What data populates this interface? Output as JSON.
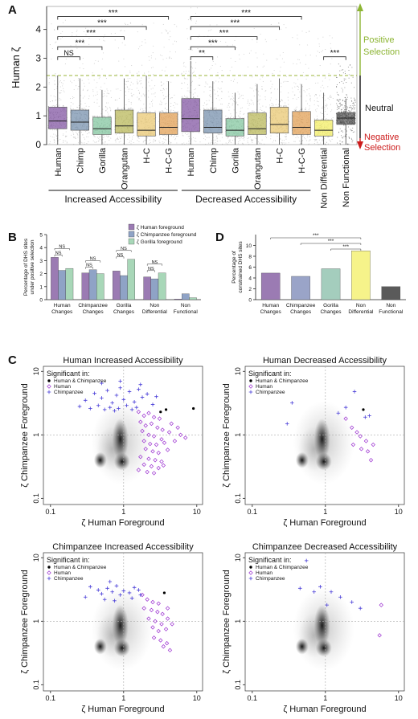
{
  "chart_data": [
    {
      "panel": "A",
      "type": "box",
      "ylabel": "Human ζ",
      "ylim": [
        0,
        4.8
      ],
      "yticks": [
        0,
        1,
        2,
        3,
        4
      ],
      "threshold_y": 2.4,
      "categories": [
        "Human",
        "Chimp",
        "Gorilla",
        "Orangutan",
        "H-C",
        "H-C-G",
        "Human",
        "Chimp",
        "Gorilla",
        "Orangutan",
        "H-C",
        "H-C-G",
        "Non Differential",
        "Non Functional"
      ],
      "colors": [
        "#7b4c9c",
        "#6f8aa8",
        "#7cc39a",
        "#b5b350",
        "#e8c56a",
        "#e09a4a",
        "#7b4c9c",
        "#6f8aa8",
        "#7cc39a",
        "#b5b350",
        "#e8c56a",
        "#e09a4a",
        "#f2ec5a",
        "#555555"
      ],
      "boxes": [
        {
          "q1": 0.55,
          "median": 0.82,
          "q3": 1.3,
          "whisker_hi": 2.4
        },
        {
          "q1": 0.5,
          "median": 0.78,
          "q3": 1.2,
          "whisker_hi": 2.3
        },
        {
          "q1": 0.35,
          "median": 0.55,
          "q3": 0.95,
          "whisker_hi": 1.9
        },
        {
          "q1": 0.4,
          "median": 0.65,
          "q3": 1.2,
          "whisker_hi": 2.3
        },
        {
          "q1": 0.3,
          "median": 0.5,
          "q3": 1.1,
          "whisker_hi": 2.4
        },
        {
          "q1": 0.35,
          "median": 0.6,
          "q3": 1.1,
          "whisker_hi": 2.2
        },
        {
          "q1": 0.45,
          "median": 0.9,
          "q3": 1.6,
          "whisker_hi": 2.9
        },
        {
          "q1": 0.4,
          "median": 0.6,
          "q3": 1.2,
          "whisker_hi": 2.2
        },
        {
          "q1": 0.3,
          "median": 0.5,
          "q3": 0.9,
          "whisker_hi": 1.8
        },
        {
          "q1": 0.35,
          "median": 0.55,
          "q3": 1.1,
          "whisker_hi": 2.1
        },
        {
          "q1": 0.4,
          "median": 0.7,
          "q3": 1.3,
          "whisker_hi": 2.3
        },
        {
          "q1": 0.35,
          "median": 0.6,
          "q3": 1.15,
          "whisker_hi": 2.1
        },
        {
          "q1": 0.3,
          "median": 0.5,
          "q3": 0.85,
          "whisker_hi": 1.8
        },
        {
          "q1": 0.7,
          "median": 0.92,
          "q3": 1.1,
          "whisker_hi": 1.6
        }
      ],
      "brackets": [
        {
          "from": 0,
          "to": 5,
          "y": 4.45,
          "label": "***"
        },
        {
          "from": 0,
          "to": 4,
          "y": 4.1,
          "label": "***"
        },
        {
          "from": 0,
          "to": 3,
          "y": 3.75,
          "label": "***"
        },
        {
          "from": 0,
          "to": 2,
          "y": 3.4,
          "label": "***"
        },
        {
          "from": 0,
          "to": 1,
          "y": 3.05,
          "label": "NS"
        },
        {
          "from": 6,
          "to": 11,
          "y": 4.45,
          "label": "***"
        },
        {
          "from": 6,
          "to": 10,
          "y": 4.1,
          "label": "***"
        },
        {
          "from": 6,
          "to": 9,
          "y": 3.75,
          "label": "***"
        },
        {
          "from": 6,
          "to": 8,
          "y": 3.4,
          "label": "***"
        },
        {
          "from": 6,
          "to": 7,
          "y": 3.05,
          "label": "**"
        },
        {
          "from": 12,
          "to": 13,
          "y": 3.05,
          "label": "***"
        }
      ],
      "side_labels": {
        "positive": [
          "Positive",
          "Selection"
        ],
        "neutral": "Neutral",
        "negative": [
          "Negative",
          "Selection"
        ]
      },
      "group_labels": [
        "Increased Accessibility",
        "Decreased Accessibility"
      ]
    },
    {
      "panel": "B",
      "type": "bar",
      "ylabel": [
        "Percentage of DHS sites",
        "under positive selection"
      ],
      "ylim": [
        0,
        5
      ],
      "yticks": [
        0,
        1,
        2,
        3,
        4,
        5
      ],
      "categories": [
        [
          "Human",
          "Changes"
        ],
        [
          "Chimpanzee",
          "Changes"
        ],
        [
          "Gorilla",
          "Changes"
        ],
        [
          "Non",
          "Differential"
        ],
        [
          "Non",
          "Functional"
        ]
      ],
      "series": [
        {
          "name": "ζ Human foreground",
          "color": "#9b7bb3",
          "values": [
            3.25,
            2.05,
            2.2,
            1.75,
            0.05
          ]
        },
        {
          "name": "ζ Chimpanzee foreground",
          "color": "#8fa3c6",
          "values": [
            2.25,
            2.3,
            1.85,
            1.6,
            0.45
          ]
        },
        {
          "name": "ζ Gorilla foreground",
          "color": "#a8d7b8",
          "values": [
            2.4,
            2.0,
            3.1,
            2.05,
            0.15
          ]
        }
      ],
      "sig_label": "NS"
    },
    {
      "panel": "D",
      "type": "bar",
      "ylabel": [
        "Percentage of",
        "constrained DHS sites"
      ],
      "ylim": [
        0,
        12
      ],
      "yticks": [
        0,
        2,
        4,
        6,
        8,
        10
      ],
      "categories": [
        [
          "Human",
          "Changes"
        ],
        [
          "Chimpanzee",
          "Changes"
        ],
        [
          "Gorilla",
          "Changes"
        ],
        [
          "Non",
          "Differential"
        ],
        [
          "Non",
          "Functional"
        ]
      ],
      "values": [
        4.9,
        4.3,
        5.7,
        9.0,
        2.4
      ],
      "colors": [
        "#9b7bb3",
        "#9aa4c8",
        "#a4cdbd",
        "#f6f38a",
        "#5a5a5a"
      ],
      "brackets": [
        {
          "from": 0,
          "to": 3,
          "label": "***"
        },
        {
          "from": 1,
          "to": 3,
          "label": "***"
        },
        {
          "from": 2,
          "to": 3,
          "label": "***"
        }
      ]
    },
    {
      "panel": "C",
      "type": "scatter",
      "xscale": "log",
      "yscale": "log",
      "xlim": [
        0.08,
        12
      ],
      "ylim": [
        0.08,
        12
      ],
      "ticks": [
        "0.1",
        "1",
        "10"
      ],
      "xlabel": "ζ Human Foreground",
      "ylabel": "ζ Chimpanzee Foreground",
      "legend_title": "Significant in:",
      "legend": [
        "Human & Chimpanzee",
        "Human",
        "Chimpanzee"
      ],
      "legend_colors": [
        "#000000",
        "#9b30d0",
        "#4a3fd8"
      ],
      "subplots": [
        {
          "title": "Human Increased Accessibility",
          "both": [
            [
              3.2,
              2.3
            ],
            [
              3.8,
              2.5
            ],
            [
              9.0,
              2.6
            ]
          ],
          "human": [
            [
              1.6,
              2.3
            ],
            [
              1.9,
              2.0
            ],
            [
              2.2,
              2.2
            ],
            [
              2.6,
              1.9
            ],
            [
              3.1,
              1.8
            ],
            [
              1.7,
              1.6
            ],
            [
              2.0,
              1.4
            ],
            [
              2.4,
              1.5
            ],
            [
              2.9,
              1.3
            ],
            [
              3.4,
              1.2
            ],
            [
              4.2,
              1.1
            ],
            [
              1.8,
              1.15
            ],
            [
              2.2,
              1.0
            ],
            [
              2.6,
              0.95
            ],
            [
              3.3,
              0.85
            ],
            [
              1.9,
              0.8
            ],
            [
              2.3,
              0.72
            ],
            [
              2.8,
              0.7
            ],
            [
              3.6,
              0.75
            ],
            [
              5.0,
              0.8
            ],
            [
              2.0,
              0.6
            ],
            [
              2.5,
              0.55
            ],
            [
              3.0,
              0.52
            ],
            [
              4.0,
              0.58
            ],
            [
              1.7,
              0.45
            ],
            [
              2.2,
              0.42
            ],
            [
              2.7,
              0.4
            ],
            [
              3.3,
              0.38
            ],
            [
              1.9,
              0.34
            ],
            [
              2.4,
              0.32
            ],
            [
              3.0,
              0.3
            ],
            [
              1.6,
              0.28
            ],
            [
              2.1,
              0.26
            ],
            [
              2.6,
              0.25
            ],
            [
              3.5,
              0.33
            ],
            [
              6.0,
              1.0
            ],
            [
              7.0,
              0.9
            ],
            [
              4.5,
              1.5
            ],
            [
              5.5,
              1.3
            ]
          ],
          "chimp": [
            [
              0.3,
              3.5
            ],
            [
              0.4,
              4.5
            ],
            [
              0.5,
              3.8
            ],
            [
              0.6,
              5.0
            ],
            [
              0.7,
              3.2
            ],
            [
              0.8,
              4.2
            ],
            [
              0.9,
              5.5
            ],
            [
              1.0,
              3.6
            ],
            [
              1.2,
              4.8
            ],
            [
              1.4,
              3.3
            ],
            [
              1.6,
              5.2
            ],
            [
              1.8,
              3.9
            ],
            [
              2.1,
              4.4
            ],
            [
              2.5,
              3.0
            ],
            [
              0.25,
              2.8
            ],
            [
              0.35,
              2.6
            ],
            [
              0.45,
              2.9
            ],
            [
              0.55,
              2.5
            ],
            [
              0.65,
              2.7
            ],
            [
              0.75,
              2.4
            ],
            [
              0.85,
              2.6
            ],
            [
              1.1,
              2.9
            ],
            [
              1.3,
              2.5
            ],
            [
              1.5,
              2.7
            ],
            [
              0.5,
              6.5
            ],
            [
              0.9,
              7.0
            ],
            [
              1.7,
              6.2
            ],
            [
              2.8,
              4.0
            ]
          ]
        },
        {
          "title": "Human Decreased Accessibility",
          "both": [
            [
              3.3,
              2.5
            ]
          ],
          "human": [
            [
              1.9,
              1.8
            ],
            [
              2.3,
              1.3
            ],
            [
              2.7,
              1.1
            ],
            [
              3.0,
              0.95
            ],
            [
              3.6,
              0.8
            ],
            [
              2.4,
              0.7
            ],
            [
              3.1,
              0.6
            ],
            [
              3.8,
              0.55
            ],
            [
              4.2,
              0.4
            ],
            [
              4.5,
              0.7
            ]
          ],
          "chimp": [
            [
              0.3,
              1.5
            ],
            [
              0.35,
              3.2
            ],
            [
              1.5,
              2.2
            ],
            [
              1.9,
              2.7
            ],
            [
              2.5,
              4.8
            ],
            [
              3.5,
              1.9
            ],
            [
              4.0,
              2.0
            ]
          ]
        },
        {
          "title": "Chimpanzee Increased Accessibility",
          "both": [
            [
              3.6,
              2.8
            ]
          ],
          "human": [
            [
              1.8,
              2.6
            ],
            [
              2.1,
              2.2
            ],
            [
              2.5,
              2.0
            ],
            [
              3.0,
              1.9
            ],
            [
              1.9,
              1.6
            ],
            [
              2.4,
              1.5
            ],
            [
              2.9,
              1.4
            ],
            [
              3.4,
              1.3
            ],
            [
              4.0,
              1.6
            ],
            [
              2.2,
              1.1
            ],
            [
              2.7,
              1.0
            ],
            [
              3.3,
              0.9
            ],
            [
              2.5,
              0.8
            ],
            [
              3.0,
              0.7
            ],
            [
              3.8,
              0.75
            ],
            [
              2.6,
              0.55
            ],
            [
              3.2,
              0.5
            ],
            [
              3.9,
              0.45
            ],
            [
              3.5,
              0.4
            ],
            [
              4.3,
              0.35
            ],
            [
              4.0,
              1.1
            ],
            [
              4.6,
              0.9
            ]
          ],
          "chimp": [
            [
              0.35,
              3.5
            ],
            [
              0.45,
              3.1
            ],
            [
              0.5,
              2.7
            ],
            [
              0.6,
              3.3
            ],
            [
              0.7,
              2.9
            ],
            [
              0.8,
              3.6
            ],
            [
              0.9,
              2.6
            ],
            [
              1.0,
              3.0
            ],
            [
              1.2,
              2.8
            ],
            [
              1.4,
              3.4
            ],
            [
              1.6,
              3.1
            ],
            [
              0.3,
              2.4
            ],
            [
              0.55,
              2.2
            ],
            [
              0.75,
              2.1
            ],
            [
              1.3,
              2.3
            ],
            [
              1.7,
              2.6
            ],
            [
              0.65,
              4.2
            ]
          ]
        },
        {
          "title": "Chimpanzee Decreased Accessibility",
          "both": [],
          "human": [
            [
              5.5,
              0.6
            ],
            [
              5.8,
              1.8
            ]
          ],
          "chimp": [
            [
              0.45,
              3.3
            ],
            [
              0.55,
              9.0
            ],
            [
              0.7,
              2.9
            ],
            [
              0.85,
              3.5
            ],
            [
              1.2,
              2.9
            ],
            [
              1.6,
              2.4
            ],
            [
              2.3,
              2.0
            ],
            [
              3.0,
              1.6
            ],
            [
              1.05,
              1.8
            ]
          ]
        }
      ]
    }
  ]
}
